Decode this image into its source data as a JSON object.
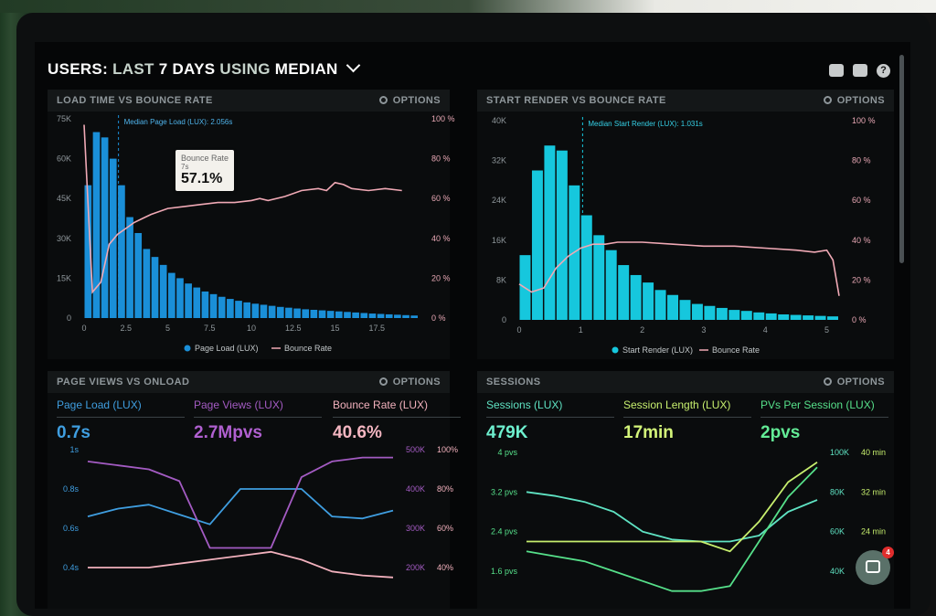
{
  "header": {
    "title_users": "USERS:",
    "title_last": "LAST",
    "title_days": "7 DAYS",
    "title_using": "USING",
    "title_median": "MEDIAN",
    "icons": [
      "monitor-icon",
      "share-icon",
      "help-icon"
    ],
    "help_glyph": "?"
  },
  "options_label": "OPTIONS",
  "panels": {
    "load": {
      "title": "LOAD TIME VS BOUNCE RATE",
      "annotation": "Median Page Load (LUX): 2.056s",
      "tooltip": {
        "label": "Bounce Rate",
        "sub": "7s",
        "value": "57.1%"
      },
      "legend_bar": "Page Load (LUX)",
      "legend_line": "Bounce Rate"
    },
    "render": {
      "title": "START RENDER VS BOUNCE RATE",
      "annotation": "Median Start Render (LUX): 1.031s",
      "legend_bar": "Start Render (LUX)",
      "legend_line": "Bounce Rate"
    },
    "pageviews": {
      "title": "PAGE VIEWS VS ONLOAD",
      "metrics": [
        {
          "label": "Page Load (LUX)",
          "value": "0.7s"
        },
        {
          "label": "Page Views (LUX)",
          "value": "2.7Mpvs"
        },
        {
          "label": "Bounce Rate (LUX)",
          "value": "40.6%"
        }
      ]
    },
    "sessions": {
      "title": "SESSIONS",
      "metrics": [
        {
          "label": "Sessions (LUX)",
          "value": "479K"
        },
        {
          "label": "Session Length (LUX)",
          "value": "17min"
        },
        {
          "label": "PVs Per Session (LUX)",
          "value": "2pvs"
        }
      ]
    }
  },
  "chat_badge": "4",
  "colors": {
    "bar_blue": "#1a8fd8",
    "bar_cyan": "#16c7dd",
    "bounce_pink": "#f0a9b5",
    "purple": "#a35bc2",
    "teal": "#5fe3c3",
    "lime": "#c7ef6e",
    "green": "#56e08a"
  },
  "chart_data": [
    {
      "type": "bar",
      "title": "LOAD TIME VS BOUNCE RATE",
      "x_ticks": [
        "0",
        "2.5",
        "5",
        "7.5",
        "10",
        "12.5",
        "15",
        "17.5"
      ],
      "y_ticks": [
        "0",
        "15K",
        "30K",
        "45K",
        "60K",
        "75K"
      ],
      "y2_ticks": [
        "0 %",
        "20 %",
        "40 %",
        "60 %",
        "80 %",
        "100 %"
      ],
      "ylim": [
        0,
        75000
      ],
      "y2lim": [
        0,
        100
      ],
      "bin_width": 0.5,
      "series": [
        {
          "name": "Page Load (LUX)",
          "type": "bar",
          "values": [
            50000,
            70000,
            68000,
            60000,
            50000,
            38000,
            32000,
            26000,
            23000,
            20000,
            17000,
            15000,
            13000,
            11500,
            10000,
            9000,
            8000,
            7200,
            6500,
            5900,
            5400,
            5000,
            4600,
            4200,
            3900,
            3600,
            3300,
            3100,
            2900,
            2700,
            2500,
            2300,
            2100,
            1900,
            1700,
            1550,
            1400,
            1250,
            1100,
            950
          ]
        },
        {
          "name": "Bounce Rate",
          "type": "line",
          "x": [
            0,
            0.5,
            1,
            1.5,
            2,
            2.5,
            3,
            3.5,
            4,
            5,
            6,
            7,
            8,
            9,
            10,
            10.5,
            11,
            12,
            13,
            14,
            14.5,
            15,
            15.5,
            16,
            17,
            18,
            19
          ],
          "values": [
            97,
            13,
            18,
            37,
            42,
            45,
            48,
            50,
            52,
            55,
            56,
            57,
            58,
            58,
            59,
            60,
            59,
            61,
            64,
            65,
            64,
            68,
            67,
            65,
            64,
            65,
            64
          ]
        }
      ],
      "median_x": 2.056,
      "tooltip": {
        "x": 7,
        "value": 57.1
      }
    },
    {
      "type": "bar",
      "title": "START RENDER VS BOUNCE RATE",
      "x_ticks": [
        "0",
        "1",
        "2",
        "3",
        "4",
        "5"
      ],
      "y_ticks": [
        "0",
        "8K",
        "16K",
        "24K",
        "32K",
        "40K"
      ],
      "y2_ticks": [
        "0 %",
        "20 %",
        "40 %",
        "60 %",
        "80 %",
        "100 %"
      ],
      "ylim": [
        0,
        40000
      ],
      "y2lim": [
        0,
        100
      ],
      "bin_width": 0.2,
      "series": [
        {
          "name": "Start Render (LUX)",
          "type": "bar",
          "values": [
            13000,
            30000,
            35000,
            34000,
            27000,
            21000,
            17000,
            14000,
            11000,
            9000,
            7500,
            6000,
            5000,
            4000,
            3200,
            2800,
            2400,
            2000,
            1800,
            1500,
            1300,
            1100,
            1000,
            900,
            800,
            700
          ]
        },
        {
          "name": "Bounce Rate",
          "type": "line",
          "x": [
            0,
            0.2,
            0.4,
            0.6,
            0.8,
            1,
            1.2,
            1.4,
            1.6,
            1.8,
            2,
            2.5,
            3,
            3.5,
            4,
            4.5,
            4.8,
            5,
            5.1,
            5.2
          ],
          "values": [
            18,
            14,
            16,
            26,
            32,
            36,
            38,
            38,
            39,
            39,
            39,
            38,
            37,
            37,
            36,
            35,
            34,
            35,
            30,
            12
          ]
        }
      ],
      "median_x": 1.031
    },
    {
      "type": "line",
      "title": "PAGE VIEWS VS ONLOAD",
      "y_ticks": [
        "0.4s",
        "0.6s",
        "0.8s",
        "1s"
      ],
      "y2_ticks_k": [
        "200K",
        "300K",
        "400K",
        "500K"
      ],
      "y2_ticks_pct": [
        "40%",
        "60%",
        "80%",
        "100%"
      ],
      "series": [
        {
          "name": "Page Load (LUX)",
          "axis": "s",
          "values": [
            0.66,
            0.7,
            0.72,
            0.67,
            0.62,
            0.8,
            0.8,
            0.8,
            0.66,
            0.65,
            0.69
          ]
        },
        {
          "name": "Page Views (LUX)",
          "axis": "K",
          "values": [
            470,
            460,
            450,
            420,
            250,
            250,
            250,
            430,
            470,
            480,
            480
          ]
        },
        {
          "name": "Bounce Rate (LUX)",
          "axis": "pct",
          "values": [
            40,
            40,
            40,
            42,
            44,
            46,
            48,
            44,
            38,
            36,
            35
          ]
        }
      ]
    },
    {
      "type": "line",
      "title": "SESSIONS",
      "y_ticks": [
        "1.6 pvs",
        "2.4 pvs",
        "3.2 pvs",
        "4 pvs"
      ],
      "y2_ticks_k": [
        "40K",
        "60K",
        "80K",
        "100K"
      ],
      "y2_ticks_min": [
        "24 min",
        "32 min",
        "40 min"
      ],
      "series": [
        {
          "name": "Sessions (LUX)",
          "axis": "K",
          "values": [
            80,
            78,
            75,
            70,
            60,
            56,
            55,
            55,
            58,
            70,
            76
          ]
        },
        {
          "name": "Session Length (LUX)",
          "axis": "min",
          "values": [
            22,
            22,
            22,
            22,
            22,
            22,
            22,
            20,
            26,
            34,
            38
          ]
        },
        {
          "name": "PVs Per Session (LUX)",
          "axis": "pvs",
          "values": [
            2.0,
            1.9,
            1.8,
            1.6,
            1.4,
            1.2,
            1.2,
            1.3,
            2.2,
            3.1,
            3.7
          ]
        }
      ]
    }
  ]
}
